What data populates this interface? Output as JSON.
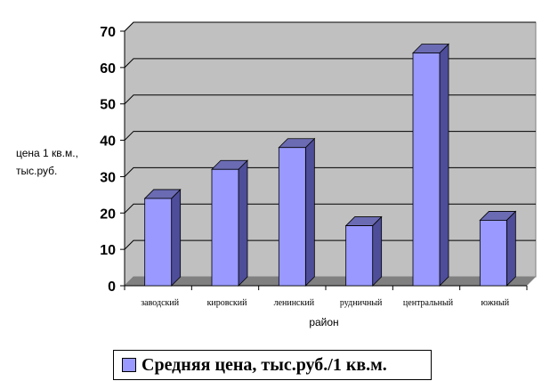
{
  "chart_data": {
    "type": "bar",
    "categories": [
      "заводский",
      "кировский",
      "ленинский",
      "рудничный",
      "центральный",
      "южный"
    ],
    "series": [
      {
        "name": "Средняя цена, тыс.руб./1 кв.м.",
        "values": [
          24,
          32,
          38,
          16.5,
          64,
          18
        ]
      }
    ],
    "yticks": [
      "0",
      "10",
      "20",
      "30",
      "40",
      "50",
      "60",
      "70"
    ],
    "ylim": [
      0,
      70
    ],
    "xlabel": "район",
    "ylabel_lines": [
      "цена 1 кв.м.,",
      "тыс.руб."
    ],
    "grid": true,
    "legend_position": "bottom",
    "colors": {
      "bar_front": "#9999ff",
      "bar_side": "#4d4d99",
      "bar_top": "#6b6bb3",
      "plot_wall": "#c0c0c0",
      "floor": "#808080"
    }
  }
}
